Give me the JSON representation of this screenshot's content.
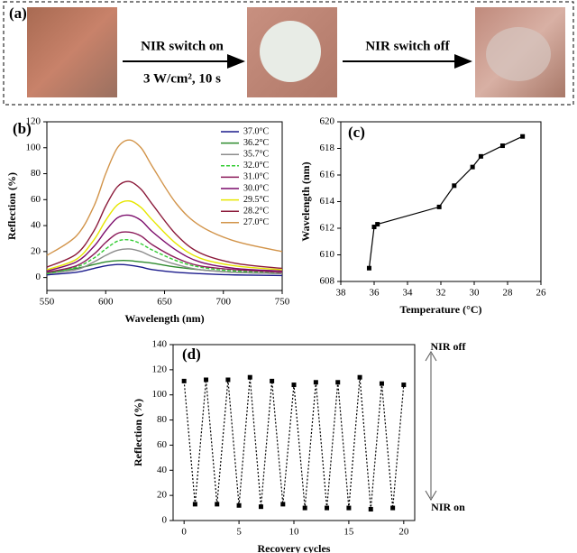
{
  "panel_a": {
    "label": "(a)",
    "arrow1_top": "NIR switch on",
    "arrow1_bottom": "3 W/cm², 10 s",
    "arrow2_top": "NIR switch off"
  },
  "chart_data": [
    {
      "type": "line",
      "panel": "(b)",
      "x_label": "Wavelength (nm)",
      "y_label": "Reflection (%)",
      "x": [
        550,
        575,
        590,
        600,
        610,
        620,
        630,
        640,
        660,
        680,
        710,
        750
      ],
      "xlim": [
        550,
        750
      ],
      "xticks": [
        550,
        600,
        650,
        700,
        750
      ],
      "ylim": [
        -10,
        120
      ],
      "yticks": [
        0,
        20,
        40,
        60,
        80,
        100,
        120
      ],
      "legend": "upper right",
      "series": [
        {
          "name": "37.0°C",
          "color": "#1c1c8c",
          "values": [
            2,
            4,
            7,
            9,
            10,
            9.5,
            8,
            6,
            4,
            3,
            2,
            1.5
          ]
        },
        {
          "name": "36.2°C",
          "color": "#2e8b2e",
          "values": [
            4,
            7,
            10,
            12,
            13,
            13,
            12,
            11,
            8,
            6,
            4,
            3
          ]
        },
        {
          "name": "35.7°C",
          "color": "#8c8c8c",
          "values": [
            3,
            6,
            12,
            17,
            21,
            22,
            20,
            16,
            10,
            6,
            4,
            3
          ]
        },
        {
          "name": "32.0°C",
          "color": "#33cc33",
          "dashed": true,
          "values": [
            3,
            8,
            15,
            22,
            28,
            29,
            26,
            21,
            13,
            8,
            5,
            4
          ]
        },
        {
          "name": "31.0°C",
          "color": "#8b1a5a",
          "values": [
            4,
            9,
            18,
            27,
            34,
            35,
            32,
            25,
            15,
            9,
            6,
            4
          ]
        },
        {
          "name": "30.0°C",
          "color": "#7a0a6a",
          "values": [
            5,
            12,
            24,
            36,
            46,
            48,
            44,
            35,
            21,
            12,
            7,
            5
          ]
        },
        {
          "name": "29.5°C",
          "color": "#e6e600",
          "values": [
            6,
            14,
            29,
            44,
            56,
            59,
            54,
            44,
            26,
            15,
            9,
            6
          ]
        },
        {
          "name": "28.2°C",
          "color": "#8b1a3a",
          "values": [
            8,
            18,
            36,
            55,
            70,
            74,
            68,
            56,
            33,
            19,
            11,
            7
          ]
        },
        {
          "name": "27.0°C",
          "color": "#d2944a",
          "values": [
            17,
            32,
            55,
            80,
            100,
            106,
            100,
            85,
            57,
            40,
            28,
            20
          ]
        }
      ]
    },
    {
      "type": "line",
      "panel": "(c)",
      "x_label": "Temperature (°C)",
      "y_label": "Wavelength (nm)",
      "x": [
        36.3,
        36.0,
        35.8,
        32.1,
        31.2,
        30.1,
        29.6,
        28.3,
        27.1
      ],
      "xlim": [
        38,
        26
      ],
      "xticks": [
        38,
        36,
        34,
        32,
        30,
        28,
        26
      ],
      "ylim": [
        608,
        620
      ],
      "yticks": [
        608,
        610,
        612,
        614,
        616,
        618,
        620
      ],
      "markers": true,
      "color": "#000000",
      "values": [
        609.0,
        612.1,
        612.3,
        613.6,
        615.2,
        616.6,
        617.4,
        618.2,
        618.9
      ]
    },
    {
      "type": "line",
      "panel": "(d)",
      "x_label": "Recovery cycles",
      "y_label": "Reflection (%)",
      "x": [
        0,
        1,
        2,
        3,
        4,
        5,
        6,
        7,
        8,
        9,
        10,
        11,
        12,
        13,
        14,
        15,
        16,
        17,
        18,
        19,
        20
      ],
      "xlim": [
        -1,
        21
      ],
      "xticks": [
        0,
        5,
        10,
        15,
        20
      ],
      "ylim": [
        0,
        140
      ],
      "yticks": [
        0,
        20,
        40,
        60,
        80,
        100,
        120,
        140
      ],
      "markers": true,
      "dotted": true,
      "color": "#000000",
      "values": [
        111,
        13,
        112,
        13,
        112,
        12,
        114,
        11,
        111,
        13,
        108,
        10,
        110,
        10,
        110,
        10,
        114,
        9,
        109,
        10,
        108
      ],
      "annotations": [
        "NIR off",
        "NIR on"
      ]
    }
  ]
}
